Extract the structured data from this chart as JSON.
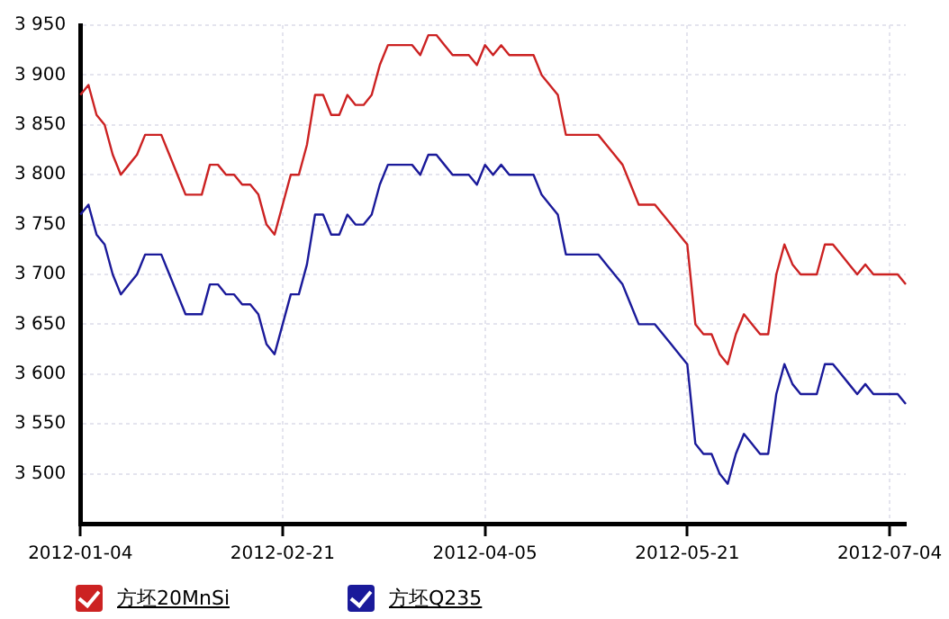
{
  "chart_data": {
    "type": "line",
    "categories": [
      "2012-01-04",
      null,
      null,
      null,
      null,
      null,
      null,
      null,
      null,
      null,
      null,
      null,
      null,
      null,
      null,
      null,
      null,
      null,
      null,
      null,
      null,
      null,
      null,
      null,
      null,
      "2012-02-21",
      null,
      null,
      null,
      null,
      null,
      null,
      null,
      null,
      null,
      null,
      null,
      null,
      null,
      null,
      null,
      null,
      null,
      null,
      null,
      null,
      null,
      null,
      null,
      null,
      "2012-04-05",
      null,
      null,
      null,
      null,
      null,
      null,
      null,
      null,
      null,
      null,
      null,
      null,
      null,
      null,
      null,
      null,
      null,
      null,
      null,
      null,
      null,
      null,
      null,
      null,
      "2012-05-21",
      null,
      null,
      null,
      null,
      null,
      null,
      null,
      null,
      null,
      null,
      null,
      null,
      null,
      null,
      null,
      null,
      null,
      null,
      null,
      null,
      null,
      null,
      null,
      null,
      "2012-07-04",
      null,
      null
    ],
    "series": [
      {
        "name": "方坯20MnSi",
        "color": "#cc2222",
        "values": [
          3880,
          3890,
          3860,
          3850,
          3820,
          3800,
          3810,
          3820,
          3840,
          3840,
          3840,
          3820,
          3800,
          3780,
          3780,
          3780,
          3810,
          3810,
          3800,
          3800,
          3790,
          3790,
          3780,
          3750,
          3740,
          3770,
          3800,
          3800,
          3830,
          3880,
          3880,
          3860,
          3860,
          3880,
          3870,
          3870,
          3880,
          3910,
          3930,
          3930,
          3930,
          3930,
          3920,
          3940,
          3940,
          3930,
          3920,
          3920,
          3920,
          3910,
          3930,
          3920,
          3930,
          3920,
          3920,
          3920,
          3920,
          3900,
          3890,
          3880,
          3840,
          3840,
          3840,
          3840,
          3840,
          3830,
          3820,
          3810,
          3790,
          3770,
          3770,
          3770,
          3760,
          3750,
          3740,
          3730,
          3650,
          3640,
          3640,
          3620,
          3610,
          3640,
          3660,
          3650,
          3640,
          3640,
          3700,
          3730,
          3710,
          3700,
          3700,
          3700,
          3730,
          3730,
          3720,
          3710,
          3700,
          3710,
          3700,
          3700,
          3700,
          3700,
          3690
        ]
      },
      {
        "name": "方坯Q235",
        "color": "#1a1a9a",
        "values": [
          3760,
          3770,
          3740,
          3730,
          3700,
          3680,
          3690,
          3700,
          3720,
          3720,
          3720,
          3700,
          3680,
          3660,
          3660,
          3660,
          3690,
          3690,
          3680,
          3680,
          3670,
          3670,
          3660,
          3630,
          3620,
          3650,
          3680,
          3680,
          3710,
          3760,
          3760,
          3740,
          3740,
          3760,
          3750,
          3750,
          3760,
          3790,
          3810,
          3810,
          3810,
          3810,
          3800,
          3820,
          3820,
          3810,
          3800,
          3800,
          3800,
          3790,
          3810,
          3800,
          3810,
          3800,
          3800,
          3800,
          3800,
          3780,
          3770,
          3760,
          3720,
          3720,
          3720,
          3720,
          3720,
          3710,
          3700,
          3690,
          3670,
          3650,
          3650,
          3650,
          3640,
          3630,
          3620,
          3610,
          3530,
          3520,
          3520,
          3500,
          3490,
          3520,
          3540,
          3530,
          3520,
          3520,
          3580,
          3610,
          3590,
          3580,
          3580,
          3580,
          3610,
          3610,
          3600,
          3590,
          3580,
          3590,
          3580,
          3580,
          3580,
          3580,
          3570
        ]
      }
    ],
    "ylim": [
      3450,
      3950
    ],
    "yticks": [
      {
        "value": 3500,
        "label": "3 500"
      },
      {
        "value": 3550,
        "label": "3 550"
      },
      {
        "value": 3600,
        "label": "3 600"
      },
      {
        "value": 3650,
        "label": "3 650"
      },
      {
        "value": 3700,
        "label": "3 700"
      },
      {
        "value": 3750,
        "label": "3 750"
      },
      {
        "value": 3800,
        "label": "3 800"
      },
      {
        "value": 3850,
        "label": "3 850"
      },
      {
        "value": 3900,
        "label": "3 900"
      },
      {
        "value": 3950,
        "label": "3 950"
      }
    ],
    "grid": true,
    "legend": "bottom left",
    "marker": "none"
  }
}
